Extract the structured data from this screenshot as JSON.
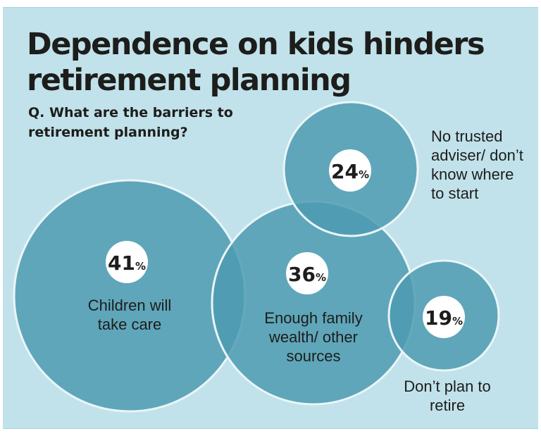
{
  "title": "Dependence on kids hinders retirement planning",
  "question": "Q. What are the barriers to retirement planning?",
  "colors": {
    "background": "#c1e2ea",
    "bubble_fill": "#4e9bb1",
    "bubble_stroke": "#eaf5f8",
    "badge_fill": "#ffffff",
    "text": "#1d1d1b"
  },
  "chart_data": {
    "type": "bubble",
    "title": "Dependence on kids hinders retirement planning",
    "subtitle": "Q. What are the barriers to retirement planning?",
    "unit": "%",
    "series": [
      {
        "name": "Children will take care",
        "value": 41,
        "value_label": "41",
        "unit": "%"
      },
      {
        "name": "Enough family wealth/ other sources",
        "value": 36,
        "value_label": "36",
        "unit": "%"
      },
      {
        "name": "No trusted adviser/ don’t know where to start",
        "value": 24,
        "value_label": "24",
        "unit": "%"
      },
      {
        "name": "Don’t plan to retire",
        "value": 19,
        "value_label": "19",
        "unit": "%"
      }
    ]
  }
}
